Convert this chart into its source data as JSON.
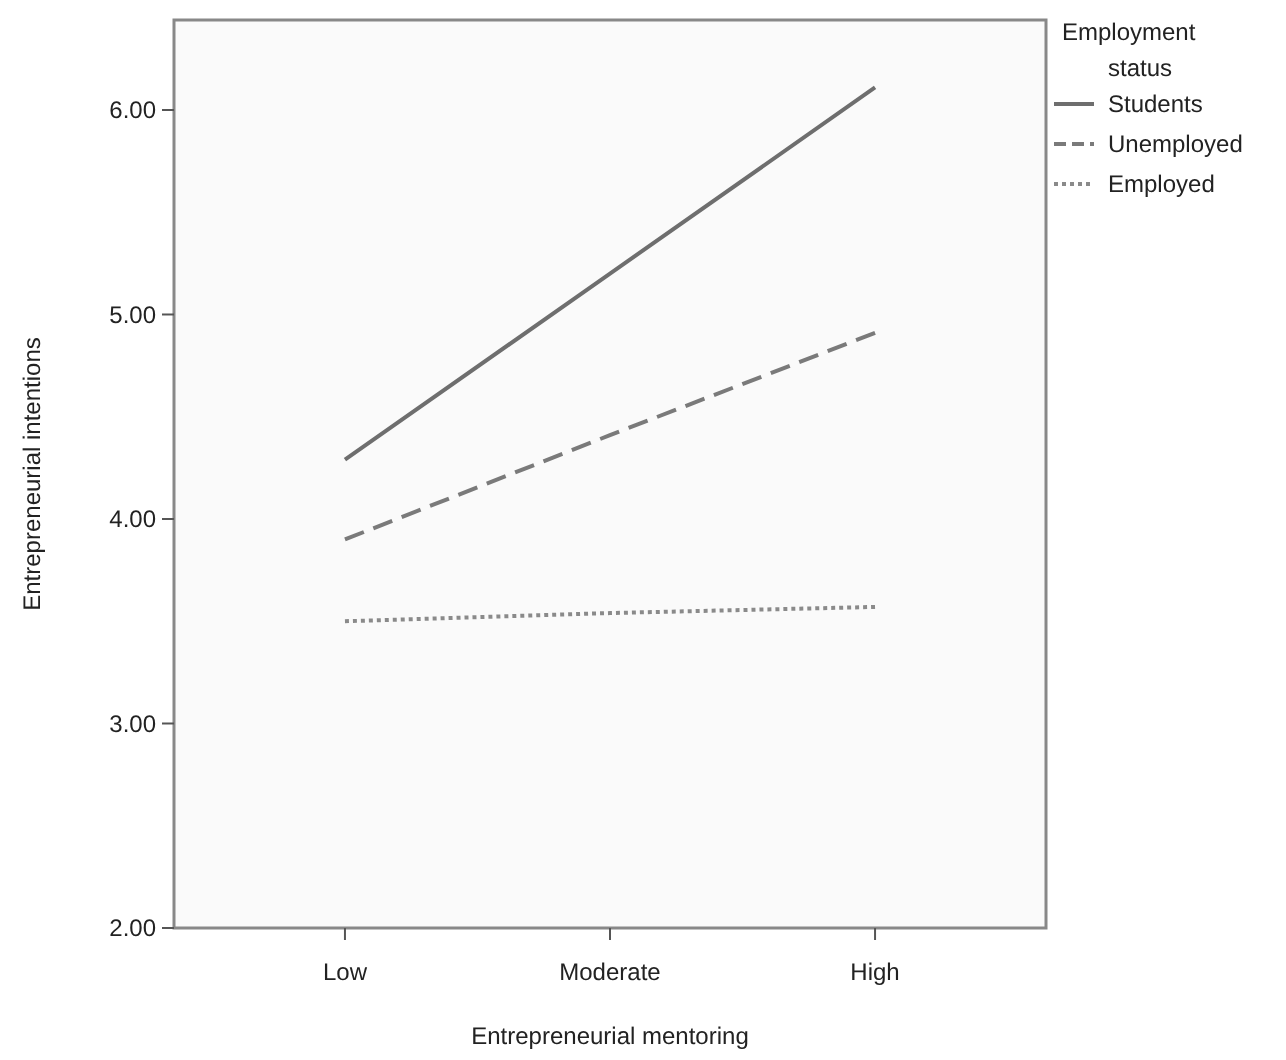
{
  "chart_data": {
    "type": "line",
    "xlabel": "Entrepreneurial mentoring",
    "ylabel": "Entrepreneurial intentions",
    "legend_title": "Employment status",
    "categories": [
      "Low",
      "Moderate",
      "High"
    ],
    "ylim": [
      2,
      6.44
    ],
    "yticks": [
      {
        "value": 2,
        "label": "2.00"
      },
      {
        "value": 3,
        "label": "3.00"
      },
      {
        "value": 4,
        "label": "4.00"
      },
      {
        "value": 5,
        "label": "5.00"
      },
      {
        "value": 6,
        "label": "6.00"
      }
    ],
    "grid": false,
    "legend": "right",
    "marker": "none",
    "series": [
      {
        "name": "Students",
        "color": "#6e6e6e",
        "line_style": "solid",
        "values": [
          4.29,
          5.2,
          6.11
        ]
      },
      {
        "name": "Unemployed",
        "color": "#7a7a7a",
        "line_style": "dashed",
        "values": [
          3.9,
          4.41,
          4.91
        ]
      },
      {
        "name": "Employed",
        "color": "#8a8a8a",
        "line_style": "dotted",
        "values": [
          3.5,
          3.54,
          3.57
        ]
      }
    ]
  }
}
